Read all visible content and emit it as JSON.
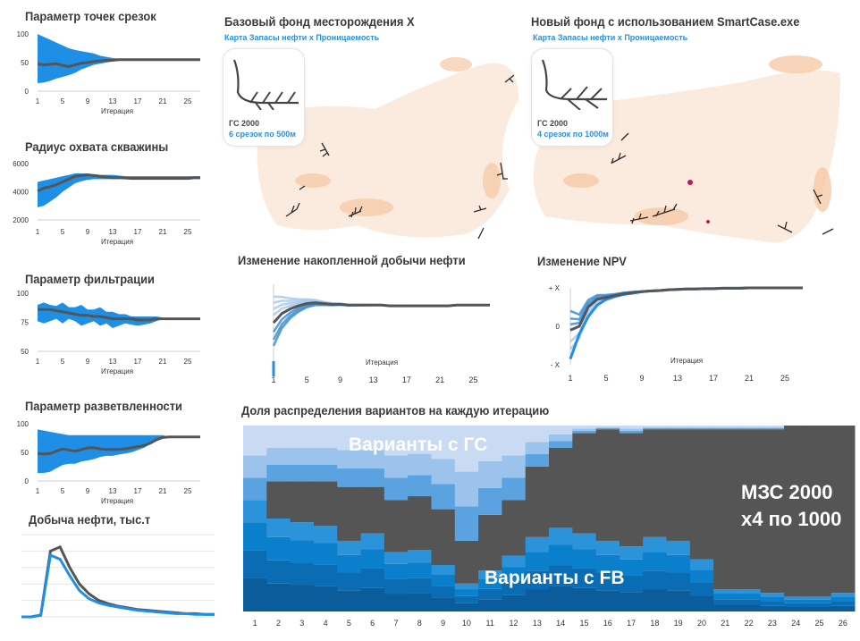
{
  "colors": {
    "band": "#1f8fe6",
    "line": "#555555",
    "dark": "#555555",
    "light": "#c9dbf2",
    "mid": "#5aa9e6",
    "blue": "#0a7fcc",
    "navy": "#0a64a8",
    "accent": "#2b8fdc"
  },
  "map1": {
    "title": "Базовый фонд месторождения X",
    "subtitle": "Карта Запасы нефти x Проницаемость",
    "card_line1": "ГС 2000",
    "card_line2": "6 срезок по 500м"
  },
  "map2": {
    "title": "Новый фонд с использованием  SmartCase.exe",
    "subtitle": "Карта Запасы нефти x Проницаемость",
    "card_line1": "ГС 2000",
    "card_line2": "4 срезок по 1000м"
  },
  "chart_data": [
    {
      "id": "cuts",
      "type": "area",
      "title": "Параметр точек срезок",
      "xlabel": "Итерация",
      "yticks": [
        "100",
        "50",
        "0"
      ],
      "ylim": [
        0,
        100
      ],
      "xticks": [
        "1",
        "5",
        "9",
        "13",
        "17",
        "21",
        "25"
      ],
      "x": [
        1,
        2,
        3,
        4,
        5,
        6,
        7,
        8,
        9,
        10,
        11,
        12,
        13,
        14,
        15,
        16,
        17,
        18,
        19,
        20,
        21,
        22,
        23,
        24,
        25,
        26,
        27
      ],
      "series": [
        {
          "values": [
            48,
            46,
            47,
            48,
            45,
            43,
            46,
            49,
            50,
            52,
            53,
            54,
            54,
            55,
            55,
            55,
            55,
            55,
            55,
            55,
            55,
            55,
            55,
            55,
            55,
            55,
            55
          ]
        }
      ],
      "band_lower": [
        14,
        15,
        18,
        22,
        25,
        28,
        32,
        38,
        42,
        46,
        48,
        50,
        52,
        53,
        54,
        55,
        55,
        55,
        55,
        55,
        55,
        55,
        55,
        55,
        55,
        55,
        55
      ],
      "band_upper": [
        100,
        95,
        90,
        85,
        80,
        75,
        72,
        70,
        68,
        66,
        62,
        60,
        58,
        57,
        56,
        55,
        55,
        55,
        55,
        55,
        55,
        55,
        55,
        55,
        55,
        55,
        55
      ]
    },
    {
      "id": "radius",
      "type": "area",
      "title": "Радиус охвата скважины",
      "xlabel": "Итерация",
      "yticks": [
        "6000",
        "4000",
        "2000"
      ],
      "ylim": [
        2000,
        6000
      ],
      "xticks": [
        "1",
        "5",
        "9",
        "13",
        "17",
        "21",
        "25"
      ],
      "x": [
        1,
        2,
        3,
        4,
        5,
        6,
        7,
        8,
        9,
        10,
        11,
        12,
        13,
        14,
        15,
        16,
        17,
        18,
        19,
        20,
        21,
        22,
        23,
        24,
        25,
        26,
        27
      ],
      "series": [
        {
          "values": [
            4050,
            4250,
            4350,
            4500,
            4700,
            4900,
            5100,
            5150,
            5200,
            5150,
            5100,
            5050,
            5000,
            5000,
            4980,
            4950,
            4950,
            4950,
            4950,
            4950,
            4950,
            4950,
            4950,
            4950,
            4950,
            5000,
            5000
          ]
        }
      ],
      "band_lower": [
        2900,
        3000,
        3300,
        3600,
        4000,
        4300,
        4600,
        4750,
        4850,
        4900,
        4900,
        4900,
        4900,
        4900,
        4900,
        4850,
        4850,
        4850,
        4850,
        4850,
        4850,
        4850,
        4850,
        4850,
        4850,
        4900,
        4900
      ],
      "band_upper": [
        4700,
        4800,
        4900,
        5000,
        5100,
        5200,
        5300,
        5300,
        5300,
        5250,
        5200,
        5200,
        5200,
        5150,
        5100,
        5100,
        5100,
        5100,
        5100,
        5100,
        5100,
        5100,
        5100,
        5100,
        5100,
        5100,
        5100
      ]
    },
    {
      "id": "filtration",
      "type": "area",
      "title": "Параметр фильтрации",
      "xlabel": "Итерация",
      "yticks": [
        "100",
        "75",
        "50"
      ],
      "ylim": [
        50,
        100
      ],
      "xticks": [
        "1",
        "5",
        "9",
        "13",
        "17",
        "21",
        "25"
      ],
      "x": [
        1,
        2,
        3,
        4,
        5,
        6,
        7,
        8,
        9,
        10,
        11,
        12,
        13,
        14,
        15,
        16,
        17,
        18,
        19,
        20,
        21,
        22,
        23,
        24,
        25,
        26,
        27
      ],
      "series": [
        {
          "values": [
            86,
            86,
            86,
            85,
            84,
            83,
            82,
            81,
            81,
            80,
            80,
            79,
            78,
            78,
            78,
            78,
            77,
            77,
            77,
            78,
            78,
            78,
            78,
            78,
            78,
            78,
            78
          ]
        }
      ],
      "band_lower": [
        76,
        74,
        76,
        78,
        74,
        78,
        76,
        72,
        74,
        76,
        72,
        74,
        70,
        72,
        74,
        73,
        72,
        73,
        74,
        76,
        78,
        78,
        78,
        78,
        78,
        78,
        78
      ],
      "band_upper": [
        90,
        92,
        90,
        89,
        92,
        88,
        88,
        90,
        86,
        86,
        88,
        84,
        84,
        82,
        82,
        80,
        80,
        80,
        80,
        80,
        79,
        78,
        78,
        78,
        78,
        78,
        78
      ]
    },
    {
      "id": "branching",
      "type": "area",
      "title": "Параметр разветвленности",
      "xlabel": "Итерация",
      "yticks": [
        "100",
        "50",
        "0"
      ],
      "ylim": [
        0,
        100
      ],
      "xticks": [
        "1",
        "5",
        "9",
        "13",
        "17",
        "21",
        "25"
      ],
      "x": [
        1,
        2,
        3,
        4,
        5,
        6,
        7,
        8,
        9,
        10,
        11,
        12,
        13,
        14,
        15,
        16,
        17,
        18,
        19,
        20,
        21,
        22,
        23,
        24,
        25,
        26,
        27
      ],
      "series": [
        {
          "values": [
            48,
            47,
            48,
            52,
            56,
            54,
            52,
            55,
            58,
            58,
            56,
            55,
            55,
            55,
            56,
            58,
            60,
            62,
            66,
            72,
            76,
            77,
            77,
            77,
            77,
            77,
            77
          ]
        }
      ],
      "band_lower": [
        14,
        14,
        16,
        22,
        28,
        30,
        30,
        34,
        36,
        38,
        42,
        44,
        44,
        46,
        48,
        50,
        54,
        58,
        64,
        70,
        76,
        77,
        77,
        77,
        77,
        77,
        77
      ],
      "band_upper": [
        90,
        88,
        86,
        84,
        82,
        80,
        80,
        80,
        80,
        80,
        80,
        80,
        80,
        80,
        80,
        80,
        80,
        80,
        80,
        80,
        80,
        77,
        77,
        77,
        77,
        77,
        77
      ]
    },
    {
      "id": "production",
      "type": "line",
      "title": "Добыча нефти, тыс.т",
      "x": [
        0,
        1,
        2,
        3,
        4,
        5,
        6,
        7,
        8,
        9,
        10,
        11,
        12,
        13,
        14,
        15,
        16,
        17,
        18,
        19,
        20
      ],
      "series": [
        {
          "values": [
            0,
            0,
            2,
            80,
            85,
            60,
            40,
            28,
            20,
            16,
            13,
            11,
            9,
            8,
            7,
            6,
            5,
            4,
            4,
            3,
            3
          ]
        },
        {
          "values": [
            0,
            0,
            2,
            75,
            70,
            50,
            32,
            22,
            17,
            14,
            12,
            10,
            8,
            7,
            6,
            5,
            4,
            4,
            3,
            3,
            3
          ]
        }
      ],
      "ylim": [
        0,
        100
      ]
    },
    {
      "id": "cumulative",
      "type": "line",
      "title": "Изменение накопленной добычи нефти",
      "xlabel": "Итерация",
      "xticks": [
        "1",
        "5",
        "9",
        "13",
        "17",
        "21",
        "25"
      ],
      "ylim": [
        0,
        100
      ],
      "x": [
        1,
        2,
        3,
        4,
        5,
        6,
        7,
        8,
        9,
        10,
        11,
        12,
        13,
        14,
        15,
        16,
        17,
        18,
        19,
        20,
        21,
        22,
        23,
        24,
        25,
        26,
        27
      ],
      "series": [
        {
          "values": [
            50,
            62,
            68,
            72,
            75,
            76,
            75,
            74,
            74,
            73,
            73,
            73,
            73,
            73,
            72,
            72,
            72,
            72,
            72,
            72,
            72,
            72,
            73,
            73,
            73,
            73,
            73
          ]
        }
      ]
    },
    {
      "id": "npv",
      "type": "line",
      "title": "Изменение NPV",
      "xlabel": "Итерация",
      "yticks": [
        "+ X",
        "0",
        "- X"
      ],
      "xticks": [
        "1",
        "5",
        "9",
        "13",
        "17",
        "21",
        "25"
      ],
      "ylim": [
        -1,
        1
      ],
      "x": [
        1,
        2,
        3,
        4,
        5,
        6,
        7,
        8,
        9,
        10,
        11,
        12,
        13,
        14,
        15,
        16,
        17,
        18,
        19,
        20,
        21,
        22,
        23,
        24,
        25,
        26,
        27
      ],
      "series": [
        {
          "values": [
            -0.1,
            0.0,
            0.5,
            0.7,
            0.75,
            0.8,
            0.85,
            0.88,
            0.9,
            0.92,
            0.93,
            0.95,
            0.96,
            0.97,
            0.97,
            0.98,
            0.98,
            0.99,
            0.99,
            0.99,
            1,
            1,
            1,
            1,
            1,
            1,
            1
          ]
        },
        {
          "values": [
            -0.85,
            -0.2,
            0.25,
            0.55,
            0.7,
            0.78,
            0.83,
            0.86,
            0.9,
            0.92,
            0.93,
            0.95,
            0.96,
            0.97,
            0.97,
            0.98,
            0.98,
            0.99,
            0.99,
            0.99,
            1,
            1,
            1,
            1,
            1,
            1,
            1
          ]
        }
      ]
    },
    {
      "id": "distribution",
      "type": "bar",
      "title": "Доля распределения вариантов на каждую итерацию",
      "categories": [
        "1",
        "2",
        "3",
        "4",
        "5",
        "6",
        "7",
        "8",
        "9",
        "10",
        "11",
        "12",
        "13",
        "14",
        "15",
        "16",
        "17",
        "18",
        "19",
        "20",
        "21",
        "22",
        "23",
        "24",
        "25",
        "26"
      ],
      "series": [
        {
          "name": "Варианты с ГС",
          "values": [
            40,
            30,
            30,
            30,
            33,
            33,
            40,
            38,
            45,
            62,
            48,
            40,
            22,
            12,
            4,
            2,
            4,
            2,
            2,
            2,
            2,
            2,
            2,
            0,
            0,
            0
          ]
        },
        {
          "name": "Варианты с FB",
          "values": [
            60,
            50,
            48,
            46,
            38,
            42,
            32,
            33,
            25,
            15,
            22,
            30,
            40,
            45,
            42,
            38,
            35,
            40,
            38,
            28,
            12,
            12,
            10,
            8,
            8,
            10
          ]
        },
        {
          "name": "МЗС 2000 x4 по 1000",
          "values": [
            0,
            20,
            22,
            24,
            29,
            25,
            28,
            29,
            30,
            23,
            30,
            30,
            38,
            43,
            54,
            60,
            61,
            58,
            60,
            70,
            86,
            86,
            88,
            92,
            92,
            90
          ]
        }
      ],
      "annotations": [
        "Варианты с ГС",
        "Варианты с FB",
        "МЗС 2000",
        "x4 по 1000"
      ]
    }
  ]
}
